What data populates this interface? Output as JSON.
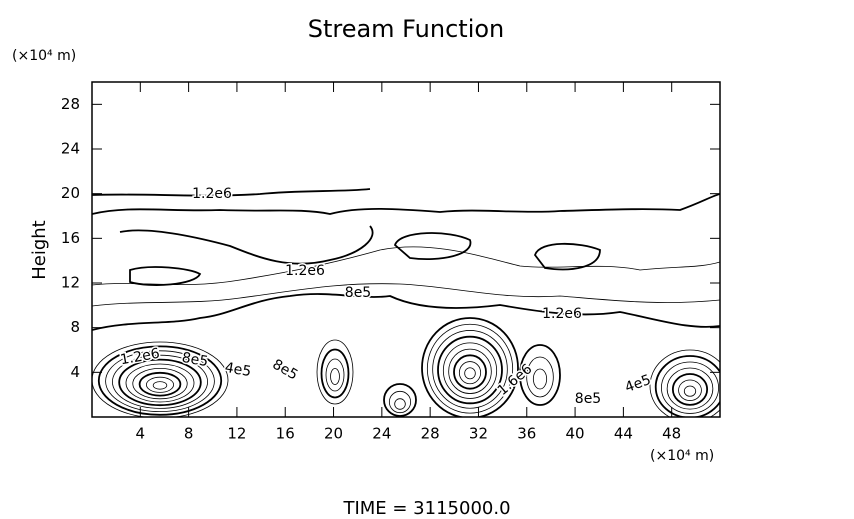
{
  "chart_data": {
    "type": "contour",
    "title": "Stream Function",
    "y_label": "Height",
    "y_unit": "(×10⁴ m)",
    "x_unit": "(×10⁴ m)",
    "footer": "TIME  =  3115000.0",
    "xlim": [
      0,
      52
    ],
    "ylim": [
      0,
      30
    ],
    "xticks": [
      4,
      8,
      12,
      16,
      20,
      24,
      28,
      32,
      36,
      40,
      44,
      48
    ],
    "yticks": [
      4,
      8,
      12,
      16,
      20,
      24,
      28
    ],
    "contour_labels": [
      "1.2e6",
      "1.2e6",
      "8e5",
      "1.2e6",
      "1.2e6",
      "8e5",
      "4e5",
      "8e5",
      "1.6e6",
      "8e5",
      "4e5"
    ]
  }
}
